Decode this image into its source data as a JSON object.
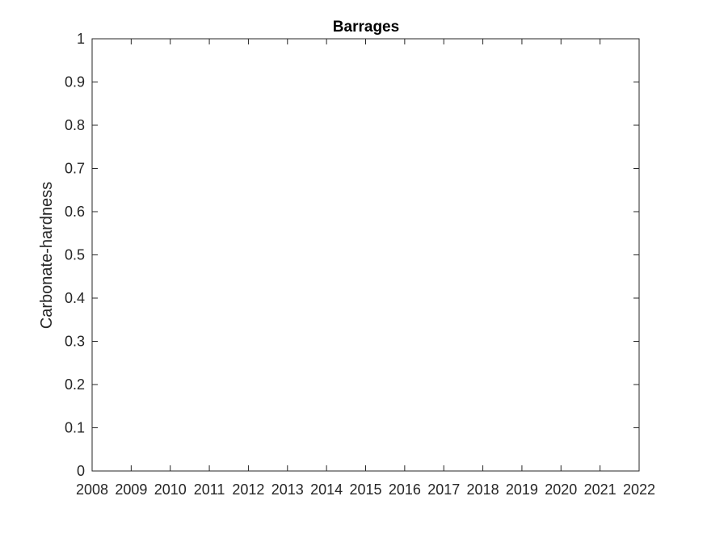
{
  "chart_data": {
    "type": "line",
    "title": "Barrages",
    "xlabel": "",
    "ylabel": "Carbonate-hardness",
    "x_ticks": [
      "2008",
      "2009",
      "2010",
      "2011",
      "2012",
      "2013",
      "2014",
      "2015",
      "2016",
      "2017",
      "2018",
      "2019",
      "2020",
      "2021",
      "2022"
    ],
    "y_ticks": [
      "0",
      "0.1",
      "0.2",
      "0.3",
      "0.4",
      "0.5",
      "0.6",
      "0.7",
      "0.8",
      "0.9",
      "1"
    ],
    "xlim": [
      2008,
      2022
    ],
    "ylim": [
      0,
      1
    ],
    "grid": false,
    "series": []
  },
  "colors": {
    "axis": "#262626",
    "background": "#ffffff"
  }
}
